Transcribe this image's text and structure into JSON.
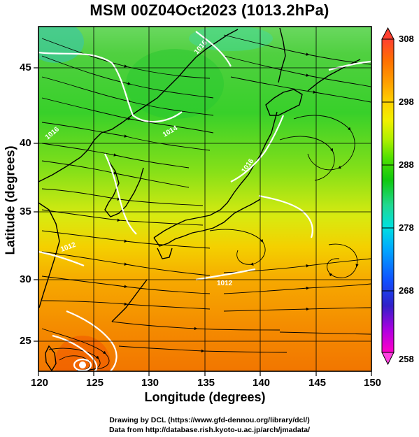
{
  "title": "MSM 00Z04Oct2023 (1013.2hPa)",
  "x_axis": {
    "label": "Longitude (degrees)",
    "ticks": [
      "120",
      "125",
      "130",
      "135",
      "140",
      "145",
      "150"
    ]
  },
  "y_axis": {
    "label": "Latitude  (degrees)",
    "ticks": [
      "45",
      "40",
      "35",
      "30",
      "25"
    ]
  },
  "colorbar": {
    "ticks": [
      "308",
      "298",
      "288",
      "278",
      "268",
      "258"
    ],
    "colors": [
      "#ff00c8",
      "#c000e0",
      "#3020c8",
      "#1060ff",
      "#00b0ff",
      "#00e0e0",
      "#20d890",
      "#00c800",
      "#40e000",
      "#a0f000",
      "#f0f000",
      "#ffd000",
      "#ffa000",
      "#ff7000",
      "#ff4030"
    ]
  },
  "map": {
    "contour_labels": [
      "1016",
      "1016",
      "1016",
      "1012",
      "1014",
      "1012"
    ]
  },
  "credits": {
    "line1": "Drawing by DCL (https://www.gfd-dennou.org/library/dcl/)",
    "line2": "Data from http://database.rish.kyoto-u.ac.jp/arch/jmadata/"
  }
}
